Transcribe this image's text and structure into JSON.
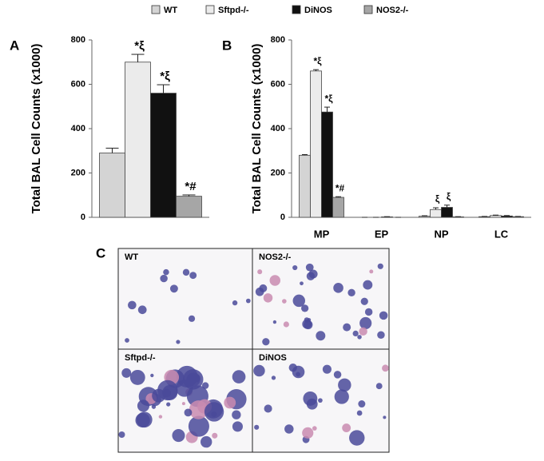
{
  "chart_data": [
    {
      "type": "bar",
      "panel": "A",
      "ylabel": "Total BAL Cell Counts (x1000)",
      "categories": [
        null
      ],
      "ylim": [
        0,
        800
      ],
      "yticks": [
        0,
        200,
        400,
        600,
        800
      ],
      "series": [
        {
          "name": "WT",
          "color": "#d4d4d4",
          "values": [
            290
          ],
          "errors": [
            22
          ],
          "labels": [
            null
          ]
        },
        {
          "name": "Sftpd-/-",
          "color": "#ebebeb",
          "values": [
            700
          ],
          "errors": [
            35
          ],
          "labels": [
            "*ξ"
          ]
        },
        {
          "name": "DiNOS",
          "color": "#111111",
          "values": [
            560
          ],
          "errors": [
            38
          ],
          "labels": [
            "*ξ"
          ]
        },
        {
          "name": "NOS2-/-",
          "color": "#a6a6a6",
          "values": [
            95
          ],
          "errors": [
            6
          ],
          "labels": [
            "*#"
          ]
        }
      ]
    },
    {
      "type": "bar",
      "panel": "B",
      "ylabel": "Total BAL Cell Counts (x1000)",
      "categories": [
        "MP",
        "EP",
        "NP",
        "LC"
      ],
      "ylim": [
        0,
        800
      ],
      "yticks": [
        0,
        200,
        400,
        600,
        800
      ],
      "series": [
        {
          "name": "WT",
          "color": "#d4d4d4",
          "values": [
            280,
            0,
            5,
            3
          ],
          "errors": [
            3,
            0,
            2,
            1
          ],
          "labels": [
            null,
            null,
            null,
            null
          ]
        },
        {
          "name": "Sftpd-/-",
          "color": "#ebebeb",
          "values": [
            660,
            0,
            35,
            8
          ],
          "errors": [
            6,
            0,
            8,
            2
          ],
          "labels": [
            "*ξ",
            null,
            "ξ",
            null
          ]
        },
        {
          "name": "DiNOS",
          "color": "#111111",
          "values": [
            475,
            2,
            45,
            6
          ],
          "errors": [
            22,
            1,
            10,
            2
          ],
          "labels": [
            "*ξ",
            null,
            "ξ",
            null
          ]
        },
        {
          "name": "NOS2-/-",
          "color": "#a6a6a6",
          "values": [
            90,
            0,
            2,
            3
          ],
          "errors": [
            3,
            0,
            1,
            1
          ],
          "labels": [
            "*#",
            null,
            null,
            null
          ]
        }
      ]
    }
  ],
  "micrographs": {
    "panel": "C",
    "labels": [
      "WT",
      "NOS2-/-",
      "Sftpd-/-",
      "DiNOS"
    ]
  }
}
